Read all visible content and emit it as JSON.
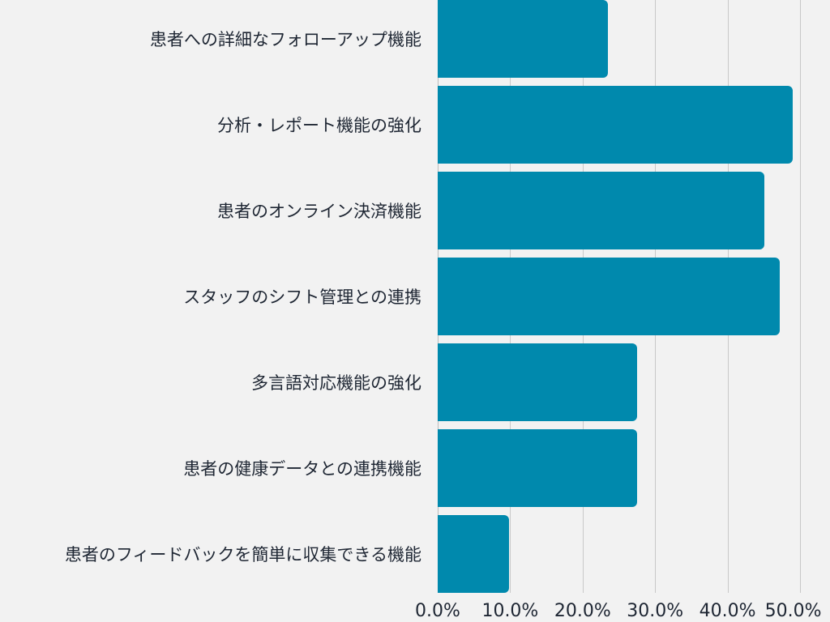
{
  "chart_data": {
    "type": "bar",
    "orientation": "horizontal",
    "title": "",
    "xlabel": "",
    "ylabel": "",
    "categories": [
      "患者への詳細なフォローアップ機能",
      "分析・レポート機能の強化",
      "患者のオンライン決済機能",
      "スタッフのシフト管理との連携",
      "多言語対応機能の強化",
      "患者の健康データとの連携機能",
      "患者のフィードバックを簡単に収集できる機能"
    ],
    "values": [
      23.5,
      49.0,
      45.1,
      47.2,
      27.5,
      27.5,
      9.8
    ],
    "xlim": [
      0,
      50
    ],
    "x_ticks": [
      "0.0%",
      "10.0%",
      "20.0%",
      "30.0%",
      "40.0%",
      "50.0%"
    ],
    "grid": true,
    "legend": "none",
    "bar_color": "#0089ad"
  }
}
